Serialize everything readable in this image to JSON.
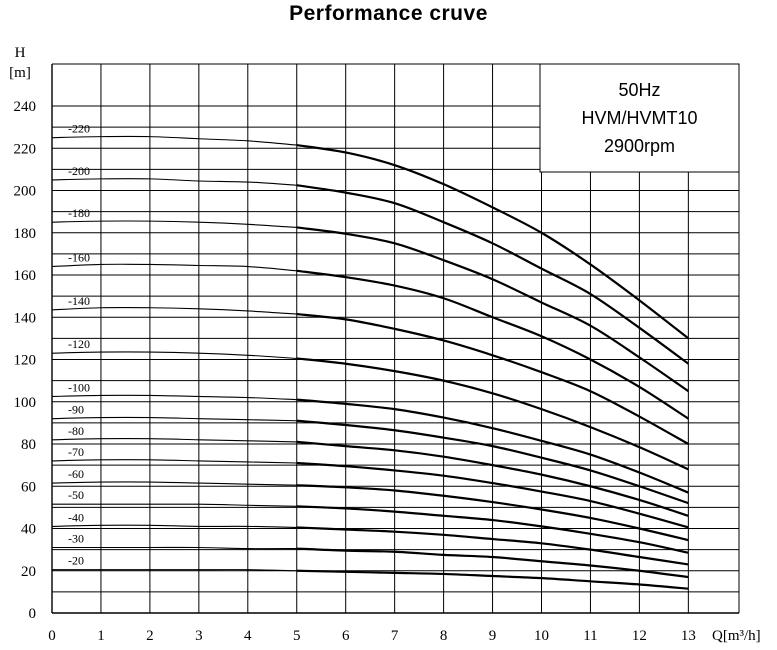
{
  "chart_data": {
    "type": "line",
    "title": "Performance cruve",
    "ylabel_top": "H",
    "ylabel_unit": "[m]",
    "xlabel": "Q[m³/h]",
    "xlim": [
      0,
      13.3
    ],
    "ylim": [
      0,
      245
    ],
    "x_ticks": [
      "0",
      "1",
      "2",
      "3",
      "4",
      "5",
      "6",
      "7",
      "8",
      "9",
      "10",
      "11",
      "12",
      "13"
    ],
    "y_ticks": [
      "0",
      "20",
      "40",
      "60",
      "80",
      "100",
      "120",
      "140",
      "160",
      "180",
      "200",
      "220",
      "240"
    ],
    "grid": true,
    "info_box": [
      "50Hz",
      "HVM/HVMT10",
      "2900rpm"
    ],
    "x": [
      0,
      1,
      2,
      3,
      4,
      5,
      6,
      7,
      8,
      9,
      10,
      11,
      12,
      13
    ],
    "series": [
      {
        "name": "-220",
        "values": [
          225,
          225.5,
          225.5,
          224.5,
          223.5,
          221.5,
          218,
          212,
          203,
          192,
          180,
          165,
          148,
          130
        ]
      },
      {
        "name": "-200",
        "values": [
          205,
          205.5,
          205.5,
          204.5,
          204,
          202.5,
          199,
          194,
          185,
          175,
          163,
          151,
          135,
          118
        ]
      },
      {
        "name": "-180",
        "values": [
          185,
          185.5,
          185.5,
          185,
          184,
          182.5,
          179.5,
          175,
          167,
          158,
          147,
          136,
          121,
          105
        ]
      },
      {
        "name": "-160",
        "values": [
          164,
          165,
          165,
          164.5,
          164,
          162,
          159,
          155,
          149,
          140,
          131,
          120,
          107,
          92
        ]
      },
      {
        "name": "-140",
        "values": [
          143.5,
          144.5,
          144.5,
          144,
          143,
          141.5,
          139,
          134.5,
          129,
          122,
          114,
          105,
          93,
          80
        ]
      },
      {
        "name": "-120",
        "values": [
          123,
          123.5,
          123.5,
          123,
          122,
          120.5,
          118,
          114.5,
          110,
          104,
          96.5,
          88,
          78.5,
          68
        ]
      },
      {
        "name": "-100",
        "values": [
          102.5,
          103,
          103,
          102.5,
          102,
          101,
          99,
          96.5,
          92.5,
          87.5,
          81.5,
          75,
          66.5,
          57
        ]
      },
      {
        "name": "-90",
        "values": [
          92,
          92.5,
          92.5,
          92,
          91.5,
          91,
          89,
          86.5,
          83,
          79,
          73.5,
          67.5,
          60,
          52
        ]
      },
      {
        "name": "-80",
        "values": [
          82,
          82.5,
          82.5,
          82,
          81.5,
          81,
          79,
          77,
          74,
          70,
          65.5,
          60,
          53.5,
          46
        ]
      },
      {
        "name": "-70",
        "values": [
          72,
          72.5,
          72.5,
          72,
          71.5,
          71,
          69.5,
          67.5,
          65,
          61.5,
          57.5,
          53,
          47,
          40.5
        ]
      },
      {
        "name": "-60",
        "values": [
          61.5,
          62,
          62,
          61.5,
          61,
          60.5,
          59.5,
          58,
          55.5,
          52.5,
          49,
          45,
          40,
          34.5
        ]
      },
      {
        "name": "-50",
        "values": [
          51.5,
          51.5,
          51.5,
          51.5,
          51,
          50.5,
          49.5,
          48,
          46,
          44,
          41,
          37.5,
          33.5,
          28.5
        ]
      },
      {
        "name": "-40",
        "values": [
          41,
          41.5,
          41.5,
          41,
          41,
          40.5,
          39.5,
          38.5,
          37,
          35,
          33,
          30,
          26.5,
          23
        ]
      },
      {
        "name": "-30",
        "values": [
          31,
          31,
          31,
          31,
          30.5,
          30.5,
          29.5,
          29,
          27.5,
          26.5,
          24.5,
          22.5,
          20,
          17
        ]
      },
      {
        "name": "-20",
        "values": [
          20.5,
          20.5,
          20.5,
          20.5,
          20.5,
          20,
          19.5,
          19,
          18.5,
          17.5,
          16.5,
          15,
          13.5,
          11.5
        ]
      }
    ]
  }
}
